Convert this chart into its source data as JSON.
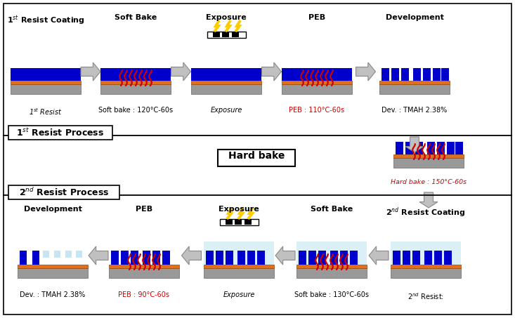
{
  "bg_color": "#ffffff",
  "colors": {
    "blue": "#0000cc",
    "orange": "#e07020",
    "gray": "#999999",
    "red": "#cc0000",
    "light_blue": "#b8e0f0",
    "white": "#ffffff",
    "black": "#000000",
    "yellow": "#ffcc00",
    "arrow_fill": "#c0c0c0",
    "arrow_edge": "#888888"
  },
  "r1_titles": [
    "1$^{st}$ Resist Coating",
    "Soft Bake",
    "Exposure",
    "PEB",
    "Development"
  ],
  "r1_labels": [
    "1$^{st}$ Resist",
    "Soft bake : 120°C-60s",
    "Exposure",
    "PEB : 110°C-60s",
    "Dev. : TMAH 2.38%"
  ],
  "r1_label_red": [
    false,
    false,
    false,
    true,
    false
  ],
  "r1_label_italic": [
    true,
    false,
    true,
    false,
    false
  ],
  "r2_titles": [
    "Development",
    "PEB",
    "Exposure",
    "Soft Bake",
    "2$^{nd}$ Resist Coating"
  ],
  "r2_labels": [
    "Dev. : TMAH 2.38%",
    "PEB : 90°C-60s",
    "Exposure",
    "Soft bake : 130°C-60s",
    "2$^{nd}$ Resist:"
  ],
  "r2_label_red": [
    false,
    true,
    false,
    false,
    false
  ],
  "r2_label_italic": [
    false,
    false,
    true,
    false,
    false
  ],
  "hard_bake_label": "Hard bake : 150°C-60s",
  "div1_label": "1$^{st}$ Resist Process",
  "div2_label": "2$^{nd}$ Resist Process"
}
